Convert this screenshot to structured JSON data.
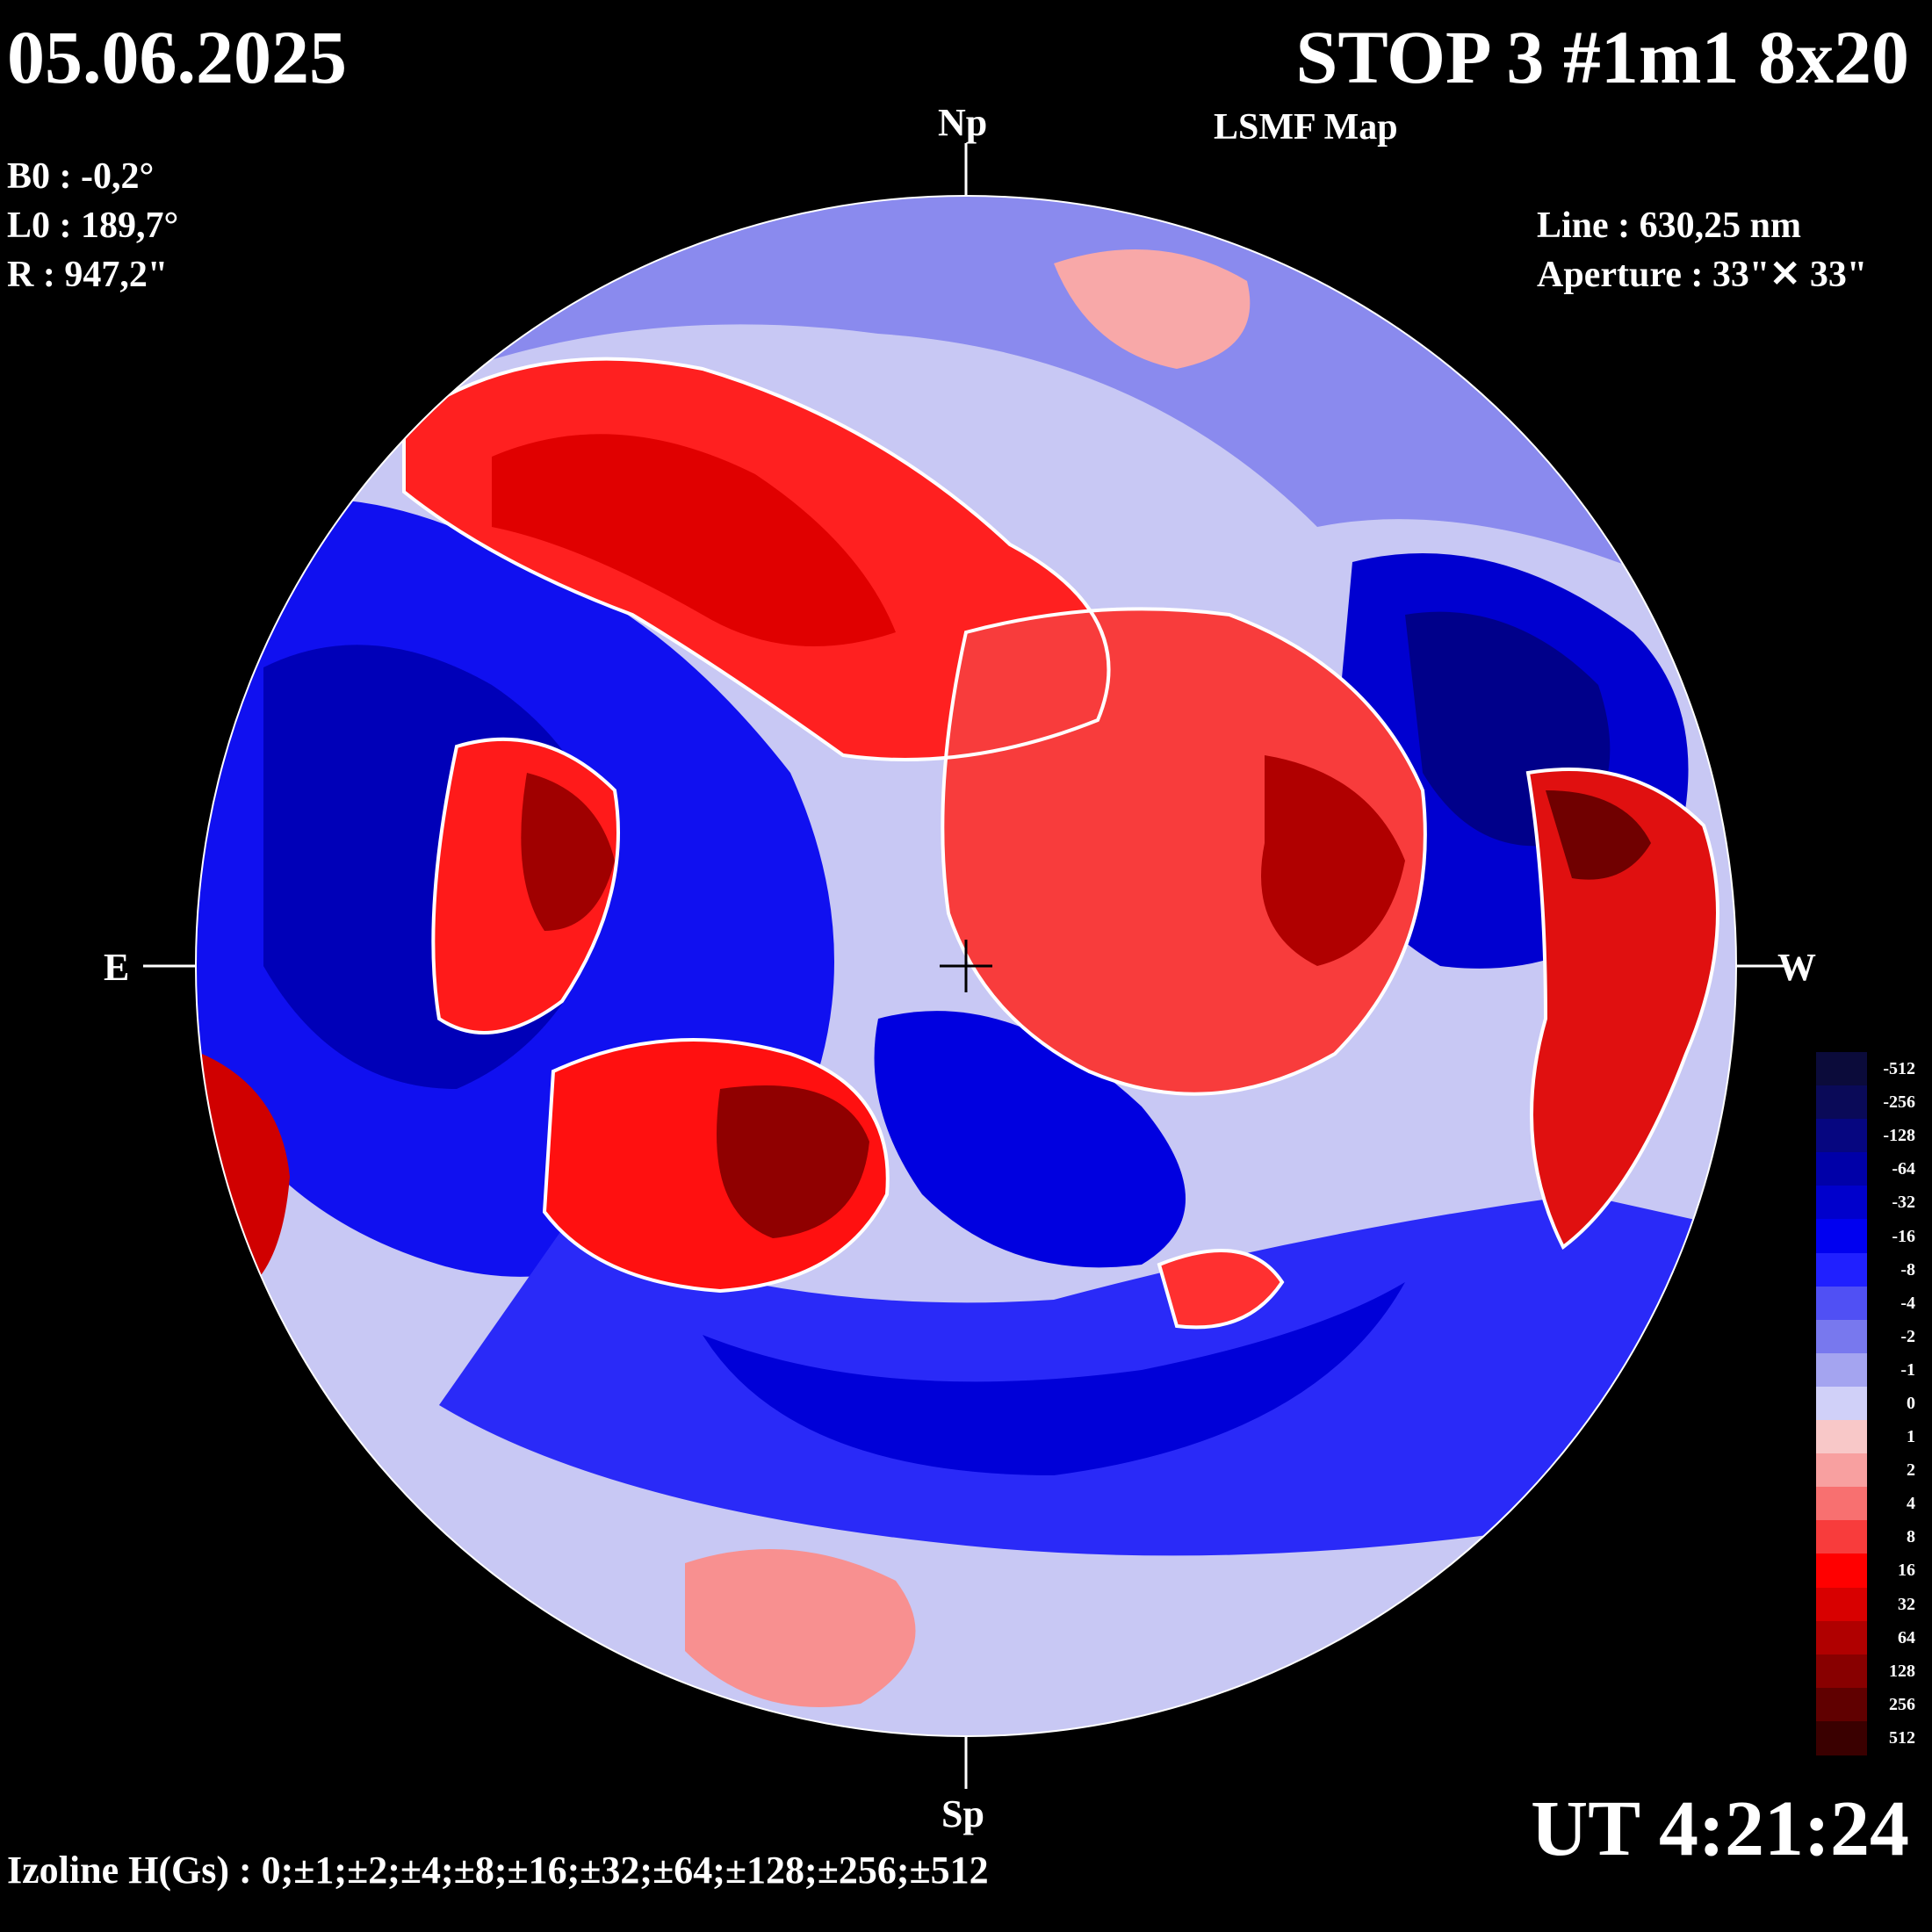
{
  "header": {
    "date": "05.06.2025",
    "title": "STOP 3 #1m1 8x20",
    "subtitle": "LSMF  Map"
  },
  "params": {
    "b0": "B0 : -0,2°",
    "l0": "L0 : 189,7°",
    "r": "R  : 947,2\"",
    "line": "Line :  630,25 nm",
    "aperture": "Aperture : 33\"✕ 33\""
  },
  "orientation": {
    "north": "Np",
    "south": "Sp",
    "east": "E",
    "west": "W"
  },
  "time": "UT 4:21:24",
  "footer": {
    "izoline": "Izoline H(Gs) : 0;±1;±2;±4;±8;±16;±32;±64;±128;±256;±512"
  },
  "colorbar": {
    "levels": [
      {
        "label": "-512",
        "color": "#0b0b3a"
      },
      {
        "label": "-256",
        "color": "#0a0a58"
      },
      {
        "label": "-128",
        "color": "#060680"
      },
      {
        "label": "-64",
        "color": "#0000a8"
      },
      {
        "label": "-32",
        "color": "#0000cc"
      },
      {
        "label": "-16",
        "color": "#0000f0"
      },
      {
        "label": "-8",
        "color": "#2020ff"
      },
      {
        "label": "-4",
        "color": "#5050f4"
      },
      {
        "label": "-2",
        "color": "#7878ee"
      },
      {
        "label": "-1",
        "color": "#a4a4f0"
      },
      {
        "label": "0",
        "color": "#d0d0f8"
      },
      {
        "label": "1",
        "color": "#f8c8c8"
      },
      {
        "label": "2",
        "color": "#f8a0a0"
      },
      {
        "label": "4",
        "color": "#f87070"
      },
      {
        "label": "8",
        "color": "#f83c3c"
      },
      {
        "label": "16",
        "color": "#ff0000"
      },
      {
        "label": "32",
        "color": "#d80000"
      },
      {
        "label": "64",
        "color": "#b00000"
      },
      {
        "label": "128",
        "color": "#880000"
      },
      {
        "label": "256",
        "color": "#600000"
      },
      {
        "label": "512",
        "color": "#3a0000"
      }
    ]
  }
}
